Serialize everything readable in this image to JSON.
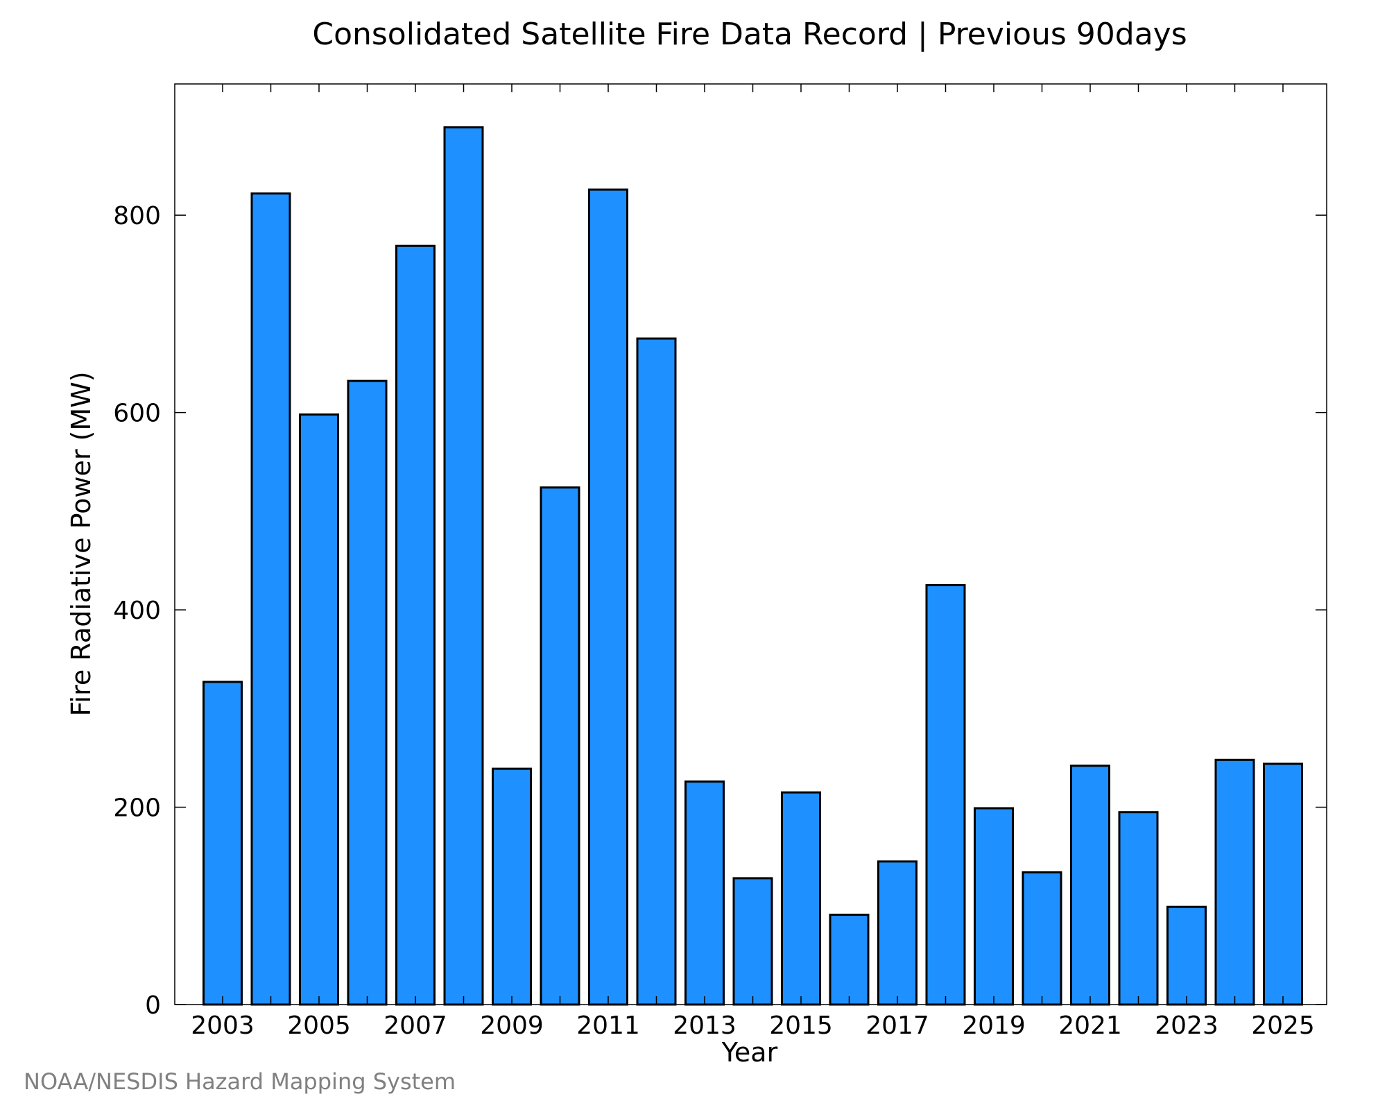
{
  "chart_data": {
    "type": "bar",
    "title": "Consolidated Satellite Fire Data Record | Previous 90days",
    "xlabel": "Year",
    "ylabel": "Fire Radiative Power (MW)",
    "categories": [
      "2003",
      "2004",
      "2005",
      "2006",
      "2007",
      "2008",
      "2009",
      "2010",
      "2011",
      "2012",
      "2013",
      "2014",
      "2015",
      "2016",
      "2017",
      "2018",
      "2019",
      "2020",
      "2021",
      "2022",
      "2023",
      "2024",
      "2025"
    ],
    "values": [
      327,
      822,
      598,
      632,
      769,
      889,
      239,
      524,
      826,
      675,
      226,
      128,
      215,
      91,
      145,
      425,
      199,
      134,
      242,
      195,
      99,
      248,
      244
    ],
    "x_tick_labels": [
      "2003",
      "2005",
      "2007",
      "2009",
      "2011",
      "2013",
      "2015",
      "2017",
      "2019",
      "2021",
      "2023",
      "2025"
    ],
    "y_ticks": [
      0,
      200,
      400,
      600,
      800
    ],
    "ylim": [
      0,
      933
    ],
    "grid": false,
    "legend": "none",
    "bar_color": "#1e90ff",
    "bar_edge_color": "#000000"
  },
  "footer": {
    "credit": "NOAA/NESDIS Hazard Mapping System",
    "credit_color": "#808080"
  }
}
